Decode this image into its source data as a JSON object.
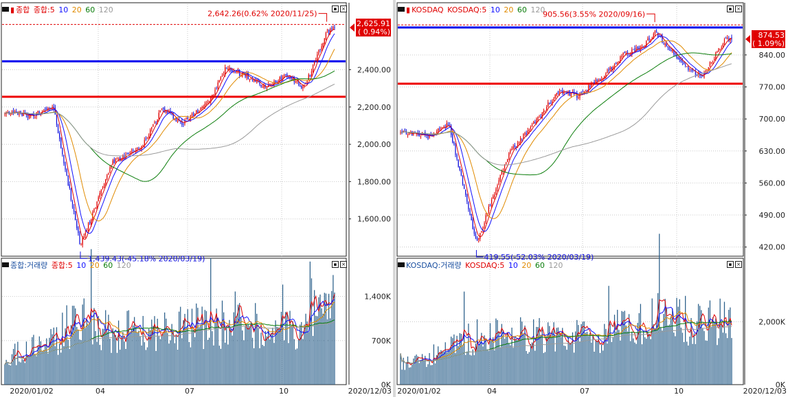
{
  "panels": [
    {
      "id": "kospi",
      "legend_prefix": "종합",
      "legend_ma": [
        "종합:5",
        "10",
        "20",
        "60",
        "120"
      ],
      "volume_legend": [
        "종합:거래량",
        "종합:5",
        "10",
        "20",
        "60",
        "120"
      ],
      "price_ticks": [
        "2,400.00",
        "2,200.00",
        "2,000.00",
        "1,800.00",
        "1,600.00"
      ],
      "volume_ticks": [
        "1,400K",
        "700K",
        "0K"
      ],
      "date_ticks": [
        "2020/01/02",
        "04",
        "07",
        "10",
        "2020/12/03"
      ],
      "high_note": "2,642.26(0.62% 2020/11/25)",
      "low_note": "1,439.43(-45.18% 2020/03/19)",
      "current_price": "2,625.91",
      "current_change": "( 0.94%)"
    },
    {
      "id": "kosdaq",
      "legend_prefix": "KOSDAQ",
      "legend_ma": [
        "KOSDAQ:5",
        "10",
        "20",
        "60",
        "120"
      ],
      "volume_legend": [
        "KOSDAQ:거래량",
        "KOSDAQ:5",
        "10",
        "20",
        "60",
        "120"
      ],
      "price_ticks": [
        "840.00",
        "770.00",
        "700.00",
        "630.00",
        "560.00",
        "490.00",
        "420.00"
      ],
      "volume_ticks": [
        "2,000K",
        "0K"
      ],
      "date_ticks": [
        "2020/01/02",
        "04",
        "07",
        "10",
        "2020/12/03"
      ],
      "high_note": "905.56(3.55% 2020/09/16)",
      "low_note": "419.55(-52.03% 2020/03/19)",
      "current_price": "874.53",
      "current_change": "( 1.09%)"
    }
  ],
  "chart_data": [
    {
      "type": "candlestick",
      "title": "종합",
      "x_range": [
        "2020/01/02",
        "2020/12/03"
      ],
      "ylim": [
        1400,
        2700
      ],
      "high": {
        "date": "2020/11/25",
        "value": 2642.26,
        "change_pct": 0.62
      },
      "low": {
        "date": "2020/03/19",
        "value": 1439.43,
        "change_pct": -45.18
      },
      "last": {
        "value": 2625.91,
        "change_pct": 0.94
      },
      "horizontal_lines": [
        {
          "color": "#0000ee",
          "value": 2445
        },
        {
          "color": "#ee0000",
          "value": 2255
        }
      ],
      "x": [
        "2020-01-02",
        "2020-01-31",
        "2020-02-20",
        "2020-03-19",
        "2020-04-20",
        "2020-05-20",
        "2020-06-10",
        "2020-07-01",
        "2020-07-31",
        "2020-08-14",
        "2020-09-03",
        "2020-09-24",
        "2020-10-15",
        "2020-11-02",
        "2020-11-25",
        "2020-12-03"
      ],
      "close": [
        2175,
        2150,
        2210,
        1457,
        1900,
        1980,
        2190,
        2110,
        2250,
        2410,
        2370,
        2300,
        2380,
        2300,
        2602,
        2626
      ],
      "volume_ylim": [
        0,
        1800
      ],
      "volume_k": [
        450,
        600,
        700,
        1100,
        800,
        900,
        850,
        900,
        950,
        900,
        1000,
        900,
        850,
        900,
        1300,
        1350
      ]
    },
    {
      "type": "candlestick",
      "title": "KOSDAQ",
      "x_range": [
        "2020/01/02",
        "2020/12/03"
      ],
      "ylim": [
        400,
        930
      ],
      "high": {
        "date": "2020/09/16",
        "value": 905.56,
        "change_pct": 3.55
      },
      "low": {
        "date": "2020/03/19",
        "value": 419.55,
        "change_pct": -52.03
      },
      "last": {
        "value": 874.53,
        "change_pct": 1.09
      },
      "horizontal_lines": [
        {
          "color": "#0000ee",
          "value": 900
        },
        {
          "color": "#ee0000",
          "value": 777
        }
      ],
      "x": [
        "2020-01-02",
        "2020-01-31",
        "2020-02-20",
        "2020-03-19",
        "2020-04-20",
        "2020-05-20",
        "2020-06-10",
        "2020-07-01",
        "2020-07-31",
        "2020-08-14",
        "2020-09-03",
        "2020-09-16",
        "2020-10-15",
        "2020-11-02",
        "2020-11-25",
        "2020-12-03"
      ],
      "close": [
        674,
        661,
        690,
        428,
        620,
        700,
        760,
        750,
        805,
        840,
        855,
        890,
        820,
        790,
        870,
        875
      ],
      "volume_ylim": [
        0,
        3600
      ],
      "volume_k": [
        750,
        900,
        1100,
        1500,
        1500,
        1600,
        1500,
        1500,
        1700,
        1700,
        1900,
        2200,
        2000,
        1900,
        2100,
        2300
      ]
    }
  ]
}
